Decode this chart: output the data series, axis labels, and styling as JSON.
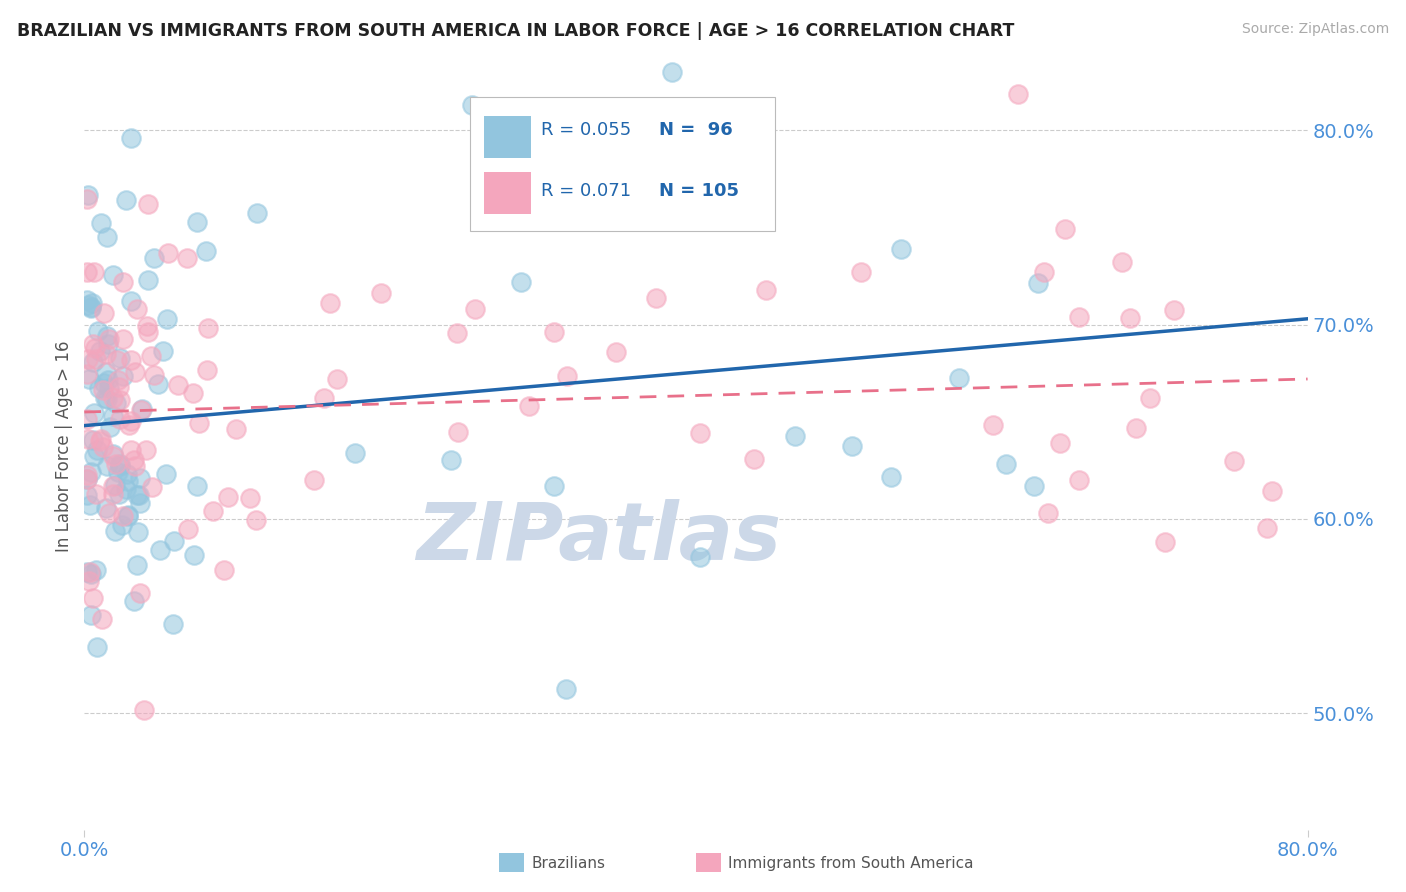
{
  "title": "BRAZILIAN VS IMMIGRANTS FROM SOUTH AMERICA IN LABOR FORCE | AGE > 16 CORRELATION CHART",
  "source": "Source: ZipAtlas.com",
  "ylabel": "In Labor Force | Age > 16",
  "legend_label1": "Brazilians",
  "legend_label2": "Immigrants from South America",
  "r1": 0.055,
  "n1": 96,
  "r2": 0.071,
  "n2": 105,
  "blue_color": "#92c5de",
  "pink_color": "#f4a6bd",
  "blue_line_color": "#2166ac",
  "pink_line_color": "#e8708a",
  "title_color": "#222222",
  "source_color": "#aaaaaa",
  "legend_text_color": "#2166ac",
  "legend_r_color": "#2166ac",
  "grid_color": "#cccccc",
  "watermark_color": "#ccd8e8",
  "axis_label_color": "#4a90d9",
  "x_min": 0.0,
  "x_max": 0.8,
  "y_min": 0.44,
  "y_max": 0.835,
  "blue_line_x0": 0.0,
  "blue_line_x1": 0.8,
  "blue_line_y0": 0.648,
  "blue_line_y1": 0.703,
  "pink_line_x0": 0.0,
  "pink_line_x1": 0.8,
  "pink_line_y0": 0.655,
  "pink_line_y1": 0.672
}
